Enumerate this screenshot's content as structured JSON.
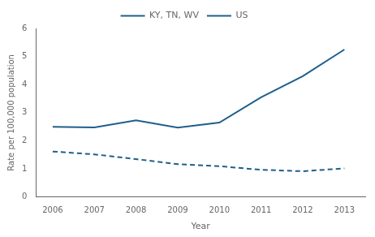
{
  "chart_data": {
    "type": "line",
    "x": [
      2006,
      2007,
      2008,
      2009,
      2010,
      2011,
      2012,
      2013
    ],
    "series": [
      {
        "name": "KY, TN, WV",
        "color": "#1f5f8b",
        "line_style": "solid",
        "values": [
          2.5,
          2.48,
          2.73,
          2.47,
          2.65,
          3.55,
          4.3,
          5.25
        ]
      },
      {
        "name": "US",
        "color": "#1f5f8b",
        "line_style": "dashed",
        "values": [
          1.62,
          1.52,
          1.35,
          1.17,
          1.1,
          0.97,
          0.92,
          1.02
        ]
      }
    ],
    "xlabel": "Year",
    "ylabel": "Rate per 100,000 population",
    "xlim": [
      2005.6,
      2013.5
    ],
    "xticks": [
      2006,
      2007,
      2008,
      2009,
      2010,
      2011,
      2012,
      2013
    ],
    "ylim": [
      0,
      6
    ],
    "yticks": [
      0,
      1,
      2,
      3,
      4,
      5,
      6
    ],
    "grid": false,
    "legend": "top"
  }
}
